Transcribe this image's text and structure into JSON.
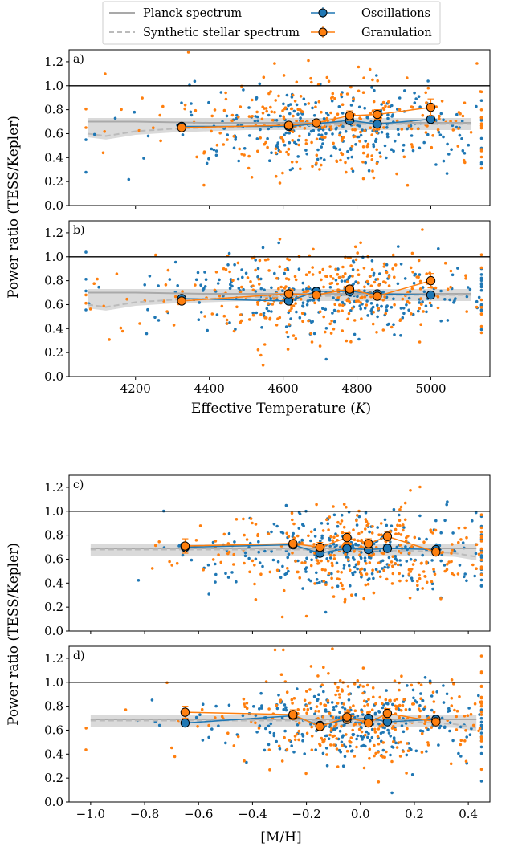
{
  "legend": {
    "planck": "Planck spectrum",
    "synthetic": "Synthetic stellar spectrum",
    "oscillations": "Oscillations",
    "granulation": "Granulation"
  },
  "colors": {
    "oscillations": "#1f77b4",
    "granulation": "#ff7f0e",
    "planck": "#a9a9a9",
    "synthetic": "#bbbbbb",
    "band": "#d3d3d3",
    "reference_line": "#000000"
  },
  "chart_data": [
    {
      "type": "scatter",
      "panel_label": "a)",
      "ylabel": "Power ratio (TESS/Kepler)",
      "xlabel": "",
      "xlim": [
        4020,
        5160
      ],
      "ylim": [
        0.0,
        1.3
      ],
      "xticks": [
        4200,
        4400,
        4600,
        4800,
        5000
      ],
      "show_xticklabels": false,
      "yticks": [
        0.0,
        0.2,
        0.4,
        0.6,
        0.8,
        1.0,
        1.2
      ],
      "reference_line": 1.0,
      "planck": {
        "x": [
          4070,
          4200,
          4400,
          4600,
          4800,
          5000,
          5110
        ],
        "y": [
          0.7,
          0.7,
          0.69,
          0.69,
          0.69,
          0.69,
          0.69
        ]
      },
      "synthetic": {
        "x": [
          4070,
          4120,
          4200,
          4300,
          4400,
          4500,
          4600,
          4700,
          4800,
          4900,
          5000,
          5110
        ],
        "y": [
          0.6,
          0.58,
          0.62,
          0.64,
          0.65,
          0.66,
          0.67,
          0.67,
          0.68,
          0.68,
          0.68,
          0.68
        ]
      },
      "series": [
        {
          "name": "Oscillations",
          "binned_x": [
            4325,
            4615,
            4780,
            4855,
            5000
          ],
          "binned_y": [
            0.66,
            0.66,
            0.71,
            0.68,
            0.72
          ],
          "binned_err": [
            0.02,
            0.02,
            0.02,
            0.02,
            0.03
          ]
        },
        {
          "name": "Granulation",
          "binned_x": [
            4325,
            4615,
            4690,
            4780,
            4855,
            5000
          ],
          "binned_y": [
            0.65,
            0.67,
            0.69,
            0.75,
            0.76,
            0.82
          ],
          "binned_err": [
            0.02,
            0.02,
            0.02,
            0.04,
            0.04,
            0.07
          ]
        }
      ]
    },
    {
      "type": "scatter",
      "panel_label": "b)",
      "ylabel": "",
      "xlabel": "Effective Temperature (K)",
      "xlim": [
        4020,
        5160
      ],
      "ylim": [
        0.0,
        1.3
      ],
      "xticks": [
        4200,
        4400,
        4600,
        4800,
        5000
      ],
      "show_xticklabels": true,
      "yticks": [
        0.0,
        0.2,
        0.4,
        0.6,
        0.8,
        1.0,
        1.2
      ],
      "reference_line": 1.0,
      "planck": {
        "x": [
          4070,
          4200,
          4400,
          4600,
          4800,
          5000,
          5110
        ],
        "y": [
          0.7,
          0.7,
          0.69,
          0.69,
          0.69,
          0.69,
          0.69
        ]
      },
      "synthetic": {
        "x": [
          4070,
          4120,
          4200,
          4300,
          4400,
          4500,
          4600,
          4700,
          4800,
          4900,
          5000,
          5110
        ],
        "y": [
          0.6,
          0.58,
          0.62,
          0.64,
          0.65,
          0.66,
          0.67,
          0.67,
          0.68,
          0.68,
          0.68,
          0.68
        ]
      },
      "series": [
        {
          "name": "Oscillations",
          "binned_x": [
            4325,
            4615,
            4690,
            4780,
            4855,
            5000
          ],
          "binned_y": [
            0.65,
            0.63,
            0.71,
            0.71,
            0.69,
            0.68
          ],
          "binned_err": [
            0.02,
            0.02,
            0.03,
            0.02,
            0.02,
            0.03
          ]
        },
        {
          "name": "Granulation",
          "binned_x": [
            4325,
            4615,
            4690,
            4780,
            4855,
            5000
          ],
          "binned_y": [
            0.63,
            0.69,
            0.68,
            0.73,
            0.67,
            0.8
          ],
          "binned_err": [
            0.02,
            0.03,
            0.03,
            0.03,
            0.03,
            0.06
          ]
        }
      ]
    },
    {
      "type": "scatter",
      "panel_label": "c)",
      "ylabel": "Power ratio (TESS/Kepler)",
      "xlabel": "",
      "xlim": [
        -1.08,
        0.48
      ],
      "ylim": [
        0.0,
        1.3
      ],
      "xticks": [
        -1.0,
        -0.8,
        -0.6,
        -0.4,
        -0.2,
        0.0,
        0.2,
        0.4
      ],
      "show_xticklabels": false,
      "yticks": [
        0.0,
        0.2,
        0.4,
        0.6,
        0.8,
        1.0,
        1.2
      ],
      "reference_line": 1.0,
      "planck": {
        "x": [
          -1.0,
          -0.6,
          -0.2,
          0.2,
          0.43
        ],
        "y": [
          0.69,
          0.69,
          0.69,
          0.69,
          0.69
        ]
      },
      "synthetic": {
        "x": [
          -1.0,
          -0.6,
          -0.2,
          0.2,
          0.35,
          0.43
        ],
        "y": [
          0.68,
          0.68,
          0.68,
          0.67,
          0.65,
          0.62
        ]
      },
      "series": [
        {
          "name": "Oscillations",
          "binned_x": [
            -0.65,
            -0.25,
            -0.15,
            -0.05,
            0.03,
            0.1,
            0.28
          ],
          "binned_y": [
            0.7,
            0.72,
            0.65,
            0.69,
            0.68,
            0.69,
            0.68
          ],
          "binned_err": [
            0.03,
            0.03,
            0.03,
            0.02,
            0.02,
            0.02,
            0.02
          ]
        },
        {
          "name": "Granulation",
          "binned_x": [
            -0.65,
            -0.25,
            -0.15,
            -0.05,
            0.03,
            0.1,
            0.28
          ],
          "binned_y": [
            0.71,
            0.73,
            0.7,
            0.78,
            0.73,
            0.79,
            0.66
          ],
          "binned_err": [
            0.06,
            0.03,
            0.04,
            0.04,
            0.04,
            0.04,
            0.03
          ]
        }
      ]
    },
    {
      "type": "scatter",
      "panel_label": "d)",
      "ylabel": "Power ratio (TESS/Kepler)",
      "xlabel": "[M/H]",
      "xlim": [
        -1.08,
        0.48
      ],
      "ylim": [
        0.0,
        1.3
      ],
      "xticks": [
        -1.0,
        -0.8,
        -0.6,
        -0.4,
        -0.2,
        0.0,
        0.2,
        0.4
      ],
      "show_xticklabels": true,
      "yticks": [
        0.0,
        0.2,
        0.4,
        0.6,
        0.8,
        1.0,
        1.2
      ],
      "reference_line": 1.0,
      "planck": {
        "x": [
          -1.0,
          -0.6,
          -0.2,
          0.2,
          0.43
        ],
        "y": [
          0.69,
          0.69,
          0.69,
          0.69,
          0.69
        ]
      },
      "synthetic": {
        "x": [
          -1.0,
          -0.6,
          -0.2,
          0.2,
          0.35,
          0.43
        ],
        "y": [
          0.68,
          0.68,
          0.68,
          0.67,
          0.65,
          0.62
        ]
      },
      "series": [
        {
          "name": "Oscillations",
          "binned_x": [
            -0.65,
            -0.25,
            -0.15,
            -0.05,
            0.03,
            0.1,
            0.28
          ],
          "binned_y": [
            0.66,
            0.72,
            0.64,
            0.69,
            0.7,
            0.67,
            0.69
          ],
          "binned_err": [
            0.03,
            0.03,
            0.02,
            0.02,
            0.02,
            0.02,
            0.03
          ]
        },
        {
          "name": "Granulation",
          "binned_x": [
            -0.65,
            -0.25,
            -0.15,
            -0.05,
            0.03,
            0.1,
            0.28
          ],
          "binned_y": [
            0.75,
            0.73,
            0.63,
            0.71,
            0.66,
            0.74,
            0.67
          ],
          "binned_err": [
            0.05,
            0.04,
            0.03,
            0.04,
            0.03,
            0.04,
            0.03
          ]
        }
      ]
    }
  ],
  "xlabels": {
    "temperature_prefix": "Effective Temperature (",
    "temperature_unit": "K",
    "temperature_suffix": ")",
    "metallicity": "[M/H]"
  }
}
